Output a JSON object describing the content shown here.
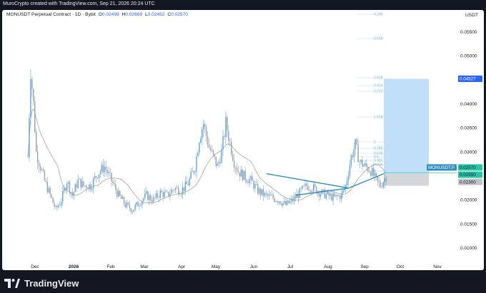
{
  "header": {
    "attribution": "MuroCrypto created with TradingView.com, Sep 21, 2026 20:24 UTC"
  },
  "symbol": {
    "title": "MONUSDT Perpetual Contract · 1D · Bybit",
    "ohlc": [
      {
        "label": "O",
        "value": "0.02499"
      },
      {
        "label": "H",
        "value": "0.02669"
      },
      {
        "label": "L",
        "value": "0.02452"
      },
      {
        "label": "C",
        "value": "0.02570"
      }
    ]
  },
  "currency": "USDT",
  "price_axis": {
    "ticks": [
      "0.05500",
      "0.05000",
      "0.04500",
      "0.04000",
      "0.03500",
      "0.03000",
      "0.02500",
      "0.02000",
      "0.01500",
      "0.01000"
    ]
  },
  "time_axis": {
    "labels": [
      "Dec",
      "2026",
      "Feb",
      "Mar",
      "Apr",
      "May",
      "Jun",
      "Jul",
      "Aug",
      "Sep",
      "Oct",
      "Nov"
    ]
  },
  "fib_levels": [
    "4.236",
    "3.618",
    "2.618",
    "2.414",
    "2.272",
    "1.618",
    "1",
    "0.786",
    "0.618",
    "0.5",
    "0.382",
    "0.236",
    "0"
  ],
  "price_tags": {
    "target": "0.04527",
    "symbol_label": "MONUSDT.P",
    "last": "0.02570",
    "entry": "0.02550",
    "stop": "0.02300"
  },
  "colors": {
    "up": "#5fa4e0",
    "down": "#9aa0aa",
    "accent": "#2962ff",
    "profit_zone": "#bbdcf8",
    "loss_zone": "#d4d6da",
    "trendline": "#2f8fc2",
    "last_price": "#26c6a6",
    "ma": "#9b9b9b"
  },
  "footer": {
    "brand": "TradingView"
  }
}
